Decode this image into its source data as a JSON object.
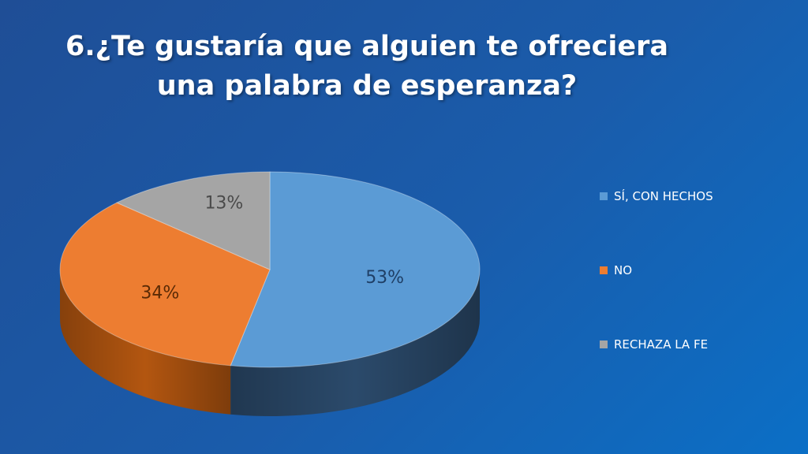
{
  "title": {
    "line1": "6.¿Te gustaría que alguien te ofreciera",
    "line2": "una palabra de esperanza?"
  },
  "chart_data": {
    "type": "pie",
    "title": "6.¿Te gustaría que alguien te ofreciera una palabra de esperanza?",
    "categories": [
      "SÍ, CON HECHOS",
      "NO",
      "RECHAZA LA FE"
    ],
    "values": [
      53,
      34,
      13
    ],
    "labels": [
      "53%",
      "34%",
      "13%"
    ],
    "colors": [
      "#5b9bd5",
      "#ed7d31",
      "#a5a5a5"
    ],
    "side_colors": [
      "#2b4a6b",
      "#b35610",
      "#6f6f6f"
    ],
    "legend_position": "right",
    "style": "3d"
  },
  "legend": {
    "items": [
      "SÍ, CON HECHOS",
      "NO",
      "RECHAZA LA FE"
    ]
  }
}
